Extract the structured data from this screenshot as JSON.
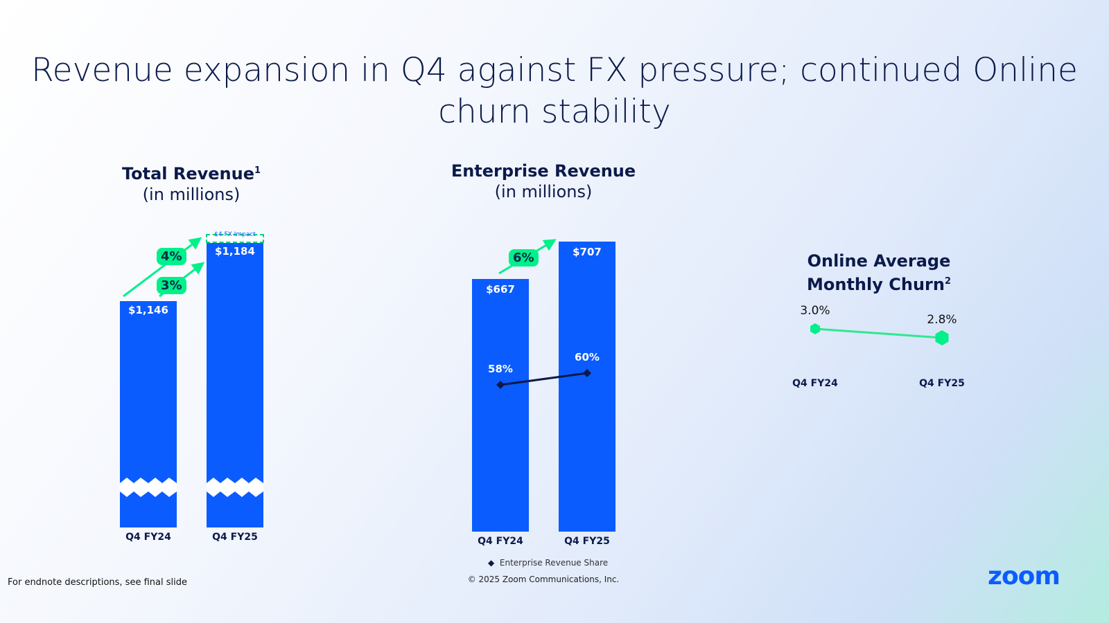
{
  "title": "Revenue expansion in Q4 against FX pressure; continued Online churn stability",
  "footer": {
    "endnote": "For endnote descriptions, see final slide",
    "copyright": "© 2025 Zoom Communications, Inc.",
    "logo": "zoom"
  },
  "colors": {
    "bar": "#0b5cff",
    "accent": "#00f08a",
    "dark": "#0b1a4a"
  },
  "chart_data": [
    {
      "type": "bar",
      "title": "Total Revenue",
      "title_sup": "1",
      "subtitle": "(in millions)",
      "categories": [
        "Q4 FY24",
        "Q4 FY25"
      ],
      "values": [
        1146,
        1184
      ],
      "labels": [
        "$1,146",
        "$1,184"
      ],
      "axis_break": true,
      "annotations": {
        "fx_impact": "$4   FX Impact",
        "growth_cc": "4%",
        "growth": "3%"
      }
    },
    {
      "type": "bar",
      "title": "Enterprise Revenue",
      "subtitle": "(in millions)",
      "categories": [
        "Q4 FY24",
        "Q4 FY25"
      ],
      "values": [
        667,
        707
      ],
      "labels": [
        "$667",
        "$707"
      ],
      "annotations": {
        "growth": "6%"
      },
      "line_series": {
        "name": "Enterprise Revenue Share",
        "values": [
          58,
          60
        ],
        "labels": [
          "58%",
          "60%"
        ]
      }
    },
    {
      "type": "line",
      "title": "Online Average Monthly Churn",
      "title_sup": "2",
      "categories": [
        "Q4 FY24",
        "Q4 FY25"
      ],
      "values": [
        3.0,
        2.8
      ],
      "labels": [
        "3.0%",
        "2.8%"
      ]
    }
  ]
}
